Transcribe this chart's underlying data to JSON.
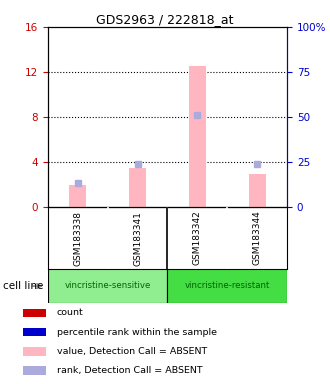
{
  "title": "GDS2963 / 222818_at",
  "samples": [
    "GSM183338",
    "GSM183341",
    "GSM183342",
    "GSM183344"
  ],
  "absent_bar_values": [
    2.0,
    3.5,
    12.5,
    3.0
  ],
  "absent_rank_values": [
    2.2,
    3.8,
    8.2,
    3.8
  ],
  "ylim_left": [
    0,
    16
  ],
  "ylim_right": [
    0,
    100
  ],
  "yticks_left": [
    0,
    4,
    8,
    12,
    16
  ],
  "yticks_right": [
    0,
    25,
    50,
    75,
    100
  ],
  "absent_bar_color": "#FFB6C1",
  "absent_rank_color": "#AAAADD",
  "count_color": "#CC0000",
  "rank_color": "#0000CC",
  "bg_color": "#FFFFFF",
  "sample_box_color": "#C8C8C8",
  "group_data": [
    {
      "label": "vincristine-sensitive",
      "xmin": 0,
      "xmax": 2,
      "color": "#90EE90"
    },
    {
      "label": "vincristine-resistant",
      "xmin": 2,
      "xmax": 4,
      "color": "#44DD44"
    }
  ],
  "legend_items": [
    {
      "label": "count",
      "color": "#CC0000"
    },
    {
      "label": "percentile rank within the sample",
      "color": "#0000CC"
    },
    {
      "label": "value, Detection Call = ABSENT",
      "color": "#FFB6C1"
    },
    {
      "label": "rank, Detection Call = ABSENT",
      "color": "#AAAADD"
    }
  ]
}
